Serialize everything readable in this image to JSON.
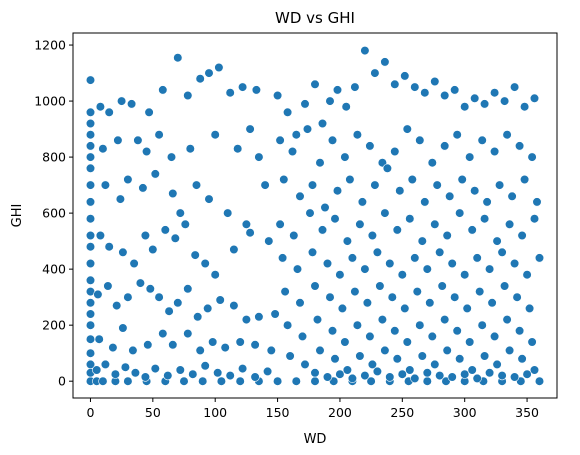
{
  "chart_data": {
    "type": "scatter",
    "title": "WD vs GHI",
    "xlabel": "WD",
    "ylabel": "GHI",
    "xlim": [
      -14,
      374
    ],
    "ylim": [
      -60,
      1243
    ],
    "x_ticks": [
      0,
      50,
      100,
      150,
      200,
      250,
      300,
      350
    ],
    "y_ticks": [
      0,
      200,
      400,
      600,
      800,
      1000,
      1200
    ],
    "grid": false,
    "legend": "none",
    "marker_color": "#1f77b4",
    "marker_edge_color": "#ffffff",
    "series": [
      {
        "points": [
          [
            0,
            0
          ],
          [
            0,
            30
          ],
          [
            0,
            60
          ],
          [
            0,
            100
          ],
          [
            0,
            150
          ],
          [
            0,
            200
          ],
          [
            0,
            240
          ],
          [
            0,
            280
          ],
          [
            0,
            320
          ],
          [
            0,
            360
          ],
          [
            0,
            420
          ],
          [
            0,
            480
          ],
          [
            0,
            520
          ],
          [
            0,
            580
          ],
          [
            0,
            640
          ],
          [
            0,
            700
          ],
          [
            0,
            760
          ],
          [
            0,
            800
          ],
          [
            0,
            840
          ],
          [
            0,
            880
          ],
          [
            0,
            920
          ],
          [
            0,
            960
          ],
          [
            0,
            1075
          ],
          [
            5,
            0
          ],
          [
            10,
            0
          ],
          [
            20,
            0
          ],
          [
            30,
            0
          ],
          [
            45,
            0
          ],
          [
            60,
            0
          ],
          [
            75,
            0
          ],
          [
            90,
            0
          ],
          [
            105,
            0
          ],
          [
            120,
            0
          ],
          [
            135,
            0
          ],
          [
            150,
            0
          ],
          [
            165,
            0
          ],
          [
            180,
            0
          ],
          [
            195,
            0
          ],
          [
            210,
            0
          ],
          [
            225,
            0
          ],
          [
            240,
            0
          ],
          [
            255,
            0
          ],
          [
            270,
            0
          ],
          [
            285,
            0
          ],
          [
            300,
            0
          ],
          [
            315,
            0
          ],
          [
            330,
            0
          ],
          [
            345,
            0
          ],
          [
            360,
            0
          ],
          [
            8,
            980
          ],
          [
            15,
            960
          ],
          [
            25,
            1000
          ],
          [
            33,
            990
          ],
          [
            47,
            960
          ],
          [
            58,
            1040
          ],
          [
            70,
            1155
          ],
          [
            78,
            1020
          ],
          [
            88,
            1080
          ],
          [
            95,
            1100
          ],
          [
            103,
            1120
          ],
          [
            112,
            1030
          ],
          [
            122,
            1050
          ],
          [
            133,
            1040
          ],
          [
            10,
            830
          ],
          [
            22,
            860
          ],
          [
            38,
            860
          ],
          [
            45,
            820
          ],
          [
            55,
            880
          ],
          [
            65,
            800
          ],
          [
            80,
            830
          ],
          [
            100,
            880
          ],
          [
            118,
            830
          ],
          [
            128,
            900
          ],
          [
            135,
            800
          ],
          [
            12,
            700
          ],
          [
            24,
            650
          ],
          [
            30,
            720
          ],
          [
            42,
            690
          ],
          [
            52,
            740
          ],
          [
            66,
            670
          ],
          [
            72,
            600
          ],
          [
            85,
            700
          ],
          [
            95,
            650
          ],
          [
            110,
            600
          ],
          [
            125,
            560
          ],
          [
            140,
            700
          ],
          [
            8,
            520
          ],
          [
            15,
            480
          ],
          [
            26,
            460
          ],
          [
            35,
            420
          ],
          [
            44,
            520
          ],
          [
            50,
            470
          ],
          [
            60,
            540
          ],
          [
            68,
            510
          ],
          [
            76,
            560
          ],
          [
            84,
            450
          ],
          [
            92,
            420
          ],
          [
            100,
            380
          ],
          [
            115,
            470
          ],
          [
            128,
            530
          ],
          [
            143,
            500
          ],
          [
            6,
            310
          ],
          [
            14,
            340
          ],
          [
            21,
            270
          ],
          [
            30,
            300
          ],
          [
            40,
            350
          ],
          [
            48,
            330
          ],
          [
            55,
            300
          ],
          [
            63,
            250
          ],
          [
            70,
            280
          ],
          [
            78,
            330
          ],
          [
            86,
            230
          ],
          [
            94,
            260
          ],
          [
            104,
            290
          ],
          [
            115,
            270
          ],
          [
            125,
            220
          ],
          [
            135,
            230
          ],
          [
            148,
            240
          ],
          [
            7,
            150
          ],
          [
            18,
            120
          ],
          [
            26,
            190
          ],
          [
            34,
            110
          ],
          [
            46,
            130
          ],
          [
            58,
            170
          ],
          [
            66,
            130
          ],
          [
            78,
            170
          ],
          [
            88,
            110
          ],
          [
            98,
            140
          ],
          [
            108,
            120
          ],
          [
            120,
            140
          ],
          [
            132,
            130
          ],
          [
            145,
            110
          ],
          [
            5,
            40
          ],
          [
            12,
            60
          ],
          [
            20,
            25
          ],
          [
            28,
            50
          ],
          [
            36,
            30
          ],
          [
            44,
            15
          ],
          [
            52,
            45
          ],
          [
            62,
            20
          ],
          [
            72,
            40
          ],
          [
            82,
            25
          ],
          [
            92,
            55
          ],
          [
            102,
            30
          ],
          [
            112,
            20
          ],
          [
            122,
            45
          ],
          [
            132,
            15
          ],
          [
            142,
            35
          ],
          [
            150,
            1020
          ],
          [
            158,
            960
          ],
          [
            165,
            880
          ],
          [
            172,
            990
          ],
          [
            180,
            1060
          ],
          [
            186,
            920
          ],
          [
            192,
            1000
          ],
          [
            198,
            1040
          ],
          [
            205,
            980
          ],
          [
            212,
            1050
          ],
          [
            220,
            1180
          ],
          [
            228,
            1100
          ],
          [
            236,
            1140
          ],
          [
            244,
            1060
          ],
          [
            252,
            1090
          ],
          [
            260,
            1050
          ],
          [
            268,
            1030
          ],
          [
            276,
            1070
          ],
          [
            284,
            1020
          ],
          [
            292,
            1040
          ],
          [
            300,
            980
          ],
          [
            308,
            1010
          ],
          [
            316,
            990
          ],
          [
            324,
            1030
          ],
          [
            332,
            1000
          ],
          [
            340,
            1050
          ],
          [
            348,
            980
          ],
          [
            356,
            1010
          ],
          [
            152,
            860
          ],
          [
            162,
            820
          ],
          [
            174,
            900
          ],
          [
            184,
            780
          ],
          [
            194,
            860
          ],
          [
            204,
            800
          ],
          [
            214,
            880
          ],
          [
            224,
            840
          ],
          [
            234,
            780
          ],
          [
            244,
            820
          ],
          [
            254,
            900
          ],
          [
            264,
            860
          ],
          [
            274,
            780
          ],
          [
            284,
            840
          ],
          [
            294,
            880
          ],
          [
            304,
            800
          ],
          [
            314,
            860
          ],
          [
            324,
            820
          ],
          [
            334,
            880
          ],
          [
            344,
            840
          ],
          [
            354,
            800
          ],
          [
            155,
            720
          ],
          [
            168,
            660
          ],
          [
            178,
            700
          ],
          [
            188,
            620
          ],
          [
            198,
            680
          ],
          [
            208,
            720
          ],
          [
            218,
            640
          ],
          [
            228,
            700
          ],
          [
            238,
            760
          ],
          [
            248,
            680
          ],
          [
            258,
            720
          ],
          [
            268,
            640
          ],
          [
            278,
            700
          ],
          [
            288,
            660
          ],
          [
            298,
            720
          ],
          [
            308,
            680
          ],
          [
            318,
            640
          ],
          [
            328,
            700
          ],
          [
            338,
            660
          ],
          [
            348,
            720
          ],
          [
            358,
            640
          ],
          [
            152,
            560
          ],
          [
            163,
            520
          ],
          [
            176,
            600
          ],
          [
            186,
            540
          ],
          [
            196,
            580
          ],
          [
            206,
            500
          ],
          [
            216,
            560
          ],
          [
            226,
            520
          ],
          [
            236,
            600
          ],
          [
            246,
            540
          ],
          [
            256,
            580
          ],
          [
            266,
            500
          ],
          [
            276,
            560
          ],
          [
            286,
            520
          ],
          [
            296,
            600
          ],
          [
            306,
            540
          ],
          [
            316,
            580
          ],
          [
            326,
            500
          ],
          [
            336,
            560
          ],
          [
            346,
            520
          ],
          [
            356,
            580
          ],
          [
            154,
            440
          ],
          [
            166,
            400
          ],
          [
            178,
            460
          ],
          [
            190,
            420
          ],
          [
            200,
            380
          ],
          [
            210,
            440
          ],
          [
            220,
            400
          ],
          [
            230,
            460
          ],
          [
            240,
            420
          ],
          [
            250,
            380
          ],
          [
            260,
            440
          ],
          [
            270,
            400
          ],
          [
            280,
            460
          ],
          [
            290,
            420
          ],
          [
            300,
            380
          ],
          [
            310,
            440
          ],
          [
            320,
            400
          ],
          [
            330,
            460
          ],
          [
            340,
            420
          ],
          [
            350,
            380
          ],
          [
            360,
            440
          ],
          [
            156,
            320
          ],
          [
            168,
            280
          ],
          [
            180,
            340
          ],
          [
            192,
            300
          ],
          [
            202,
            260
          ],
          [
            212,
            320
          ],
          [
            222,
            280
          ],
          [
            232,
            340
          ],
          [
            242,
            300
          ],
          [
            252,
            260
          ],
          [
            262,
            320
          ],
          [
            272,
            280
          ],
          [
            282,
            340
          ],
          [
            292,
            300
          ],
          [
            302,
            260
          ],
          [
            312,
            320
          ],
          [
            322,
            280
          ],
          [
            332,
            340
          ],
          [
            342,
            300
          ],
          [
            352,
            260
          ],
          [
            158,
            200
          ],
          [
            170,
            160
          ],
          [
            182,
            220
          ],
          [
            194,
            180
          ],
          [
            204,
            140
          ],
          [
            214,
            200
          ],
          [
            224,
            160
          ],
          [
            234,
            220
          ],
          [
            244,
            180
          ],
          [
            254,
            140
          ],
          [
            264,
            200
          ],
          [
            274,
            160
          ],
          [
            284,
            220
          ],
          [
            294,
            180
          ],
          [
            304,
            140
          ],
          [
            314,
            200
          ],
          [
            324,
            160
          ],
          [
            334,
            220
          ],
          [
            344,
            180
          ],
          [
            354,
            140
          ],
          [
            160,
            90
          ],
          [
            172,
            60
          ],
          [
            184,
            110
          ],
          [
            196,
            80
          ],
          [
            206,
            40
          ],
          [
            216,
            90
          ],
          [
            226,
            60
          ],
          [
            236,
            110
          ],
          [
            246,
            80
          ],
          [
            256,
            40
          ],
          [
            266,
            90
          ],
          [
            276,
            60
          ],
          [
            286,
            110
          ],
          [
            296,
            80
          ],
          [
            306,
            40
          ],
          [
            316,
            90
          ],
          [
            326,
            60
          ],
          [
            336,
            110
          ],
          [
            346,
            80
          ],
          [
            356,
            40
          ],
          [
            180,
            30
          ],
          [
            190,
            15
          ],
          [
            200,
            25
          ],
          [
            210,
            10
          ],
          [
            220,
            20
          ],
          [
            230,
            35
          ],
          [
            240,
            15
          ],
          [
            250,
            25
          ],
          [
            260,
            10
          ],
          [
            270,
            30
          ],
          [
            280,
            20
          ],
          [
            290,
            15
          ],
          [
            300,
            25
          ],
          [
            310,
            10
          ],
          [
            320,
            30
          ],
          [
            330,
            20
          ],
          [
            340,
            15
          ],
          [
            350,
            25
          ]
        ]
      }
    ]
  }
}
